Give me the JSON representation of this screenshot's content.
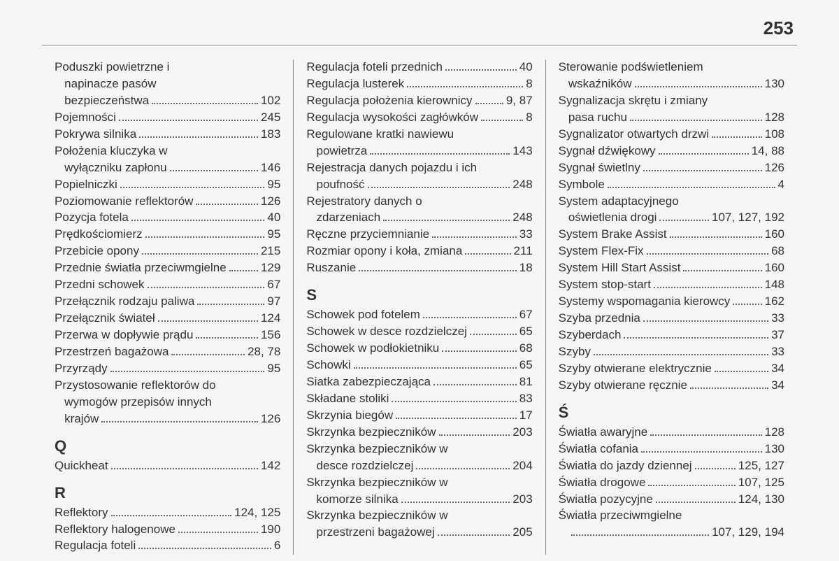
{
  "pageNumber": "253",
  "columns": [
    {
      "entries": [
        {
          "label": "Poduszki powietrzne i\n   napinacze pasów\n   bezpieczeństwa",
          "page": "102"
        },
        {
          "label": "Pojemności",
          "page": "245"
        },
        {
          "label": "Pokrywa silnika",
          "page": "183"
        },
        {
          "label": "Położenia kluczyka w\n   wyłączniku zapłonu",
          "page": "146"
        },
        {
          "label": "Popielniczki",
          "page": "95"
        },
        {
          "label": "Poziomowanie reflektorów",
          "page": "126"
        },
        {
          "label": "Pozycja fotela",
          "page": "40"
        },
        {
          "label": "Prędkościomierz",
          "page": "95"
        },
        {
          "label": "Przebicie opony",
          "page": "215"
        },
        {
          "label": "Przednie światła przeciwmgielne",
          "page": "129"
        },
        {
          "label": "Przedni schowek",
          "page": "67"
        },
        {
          "label": "Przełącznik rodzaju paliwa",
          "page": "97"
        },
        {
          "label": "Przełącznik świateł",
          "page": "124"
        },
        {
          "label": "Przerwa w dopływie prądu",
          "page": "156"
        },
        {
          "label": "Przestrzeń bagażowa",
          "page": "28, 78"
        },
        {
          "label": "Przyrządy",
          "page": "95"
        },
        {
          "label": "Przystosowanie reflektorów do\n   wymogów przepisów innych\n   krajów",
          "page": "126"
        },
        {
          "type": "header",
          "label": "Q"
        },
        {
          "label": "Quickheat",
          "page": "142"
        },
        {
          "type": "header",
          "label": "R"
        },
        {
          "label": "Reflektory",
          "page": "124, 125"
        },
        {
          "label": "Reflektory halogenowe",
          "page": "190"
        },
        {
          "label": "Regulacja foteli",
          "page": "6"
        }
      ]
    },
    {
      "entries": [
        {
          "label": "Regulacja foteli przednich",
          "page": "40"
        },
        {
          "label": "Regulacja lusterek",
          "page": "8"
        },
        {
          "label": "Regulacja położenia kierownicy",
          "page": "9, 87"
        },
        {
          "label": "Regulacja wysokości zagłówków",
          "page": "8"
        },
        {
          "label": "Regulowane kratki nawiewu\n   powietrza",
          "page": "143"
        },
        {
          "label": "Rejestracja danych pojazdu i ich\n   poufność",
          "page": "248"
        },
        {
          "label": "Rejestratory danych o\n   zdarzeniach",
          "page": "248"
        },
        {
          "label": "Ręczne przyciemnianie",
          "page": "33"
        },
        {
          "label": "Rozmiar opony i koła, zmiana",
          "page": "211"
        },
        {
          "label": "Ruszanie",
          "page": "18"
        },
        {
          "type": "header",
          "label": "S"
        },
        {
          "label": "Schowek pod fotelem",
          "page": "67"
        },
        {
          "label": "Schowek w desce rozdzielczej",
          "page": "65"
        },
        {
          "label": "Schowek w podłokietniku",
          "page": "68"
        },
        {
          "label": "Schowki",
          "page": "65"
        },
        {
          "label": "Siatka zabezpieczająca",
          "page": "81"
        },
        {
          "label": "Składane stoliki",
          "page": "83"
        },
        {
          "label": "Skrzynia biegów",
          "page": "17"
        },
        {
          "label": "Skrzynka bezpieczników",
          "page": "203"
        },
        {
          "label": "Skrzynka bezpieczników w\n   desce rozdzielczej",
          "page": "204"
        },
        {
          "label": "Skrzynka bezpieczników w\n   komorze silnika",
          "page": "203"
        },
        {
          "label": "Skrzynka bezpieczników w\n   przestrzeni bagażowej",
          "page": "205"
        }
      ]
    },
    {
      "entries": [
        {
          "label": "Sterowanie podświetleniem\n   wskaźników",
          "page": "130"
        },
        {
          "label": "Sygnalizacja skrętu i zmiany\n   pasa ruchu",
          "page": "128"
        },
        {
          "label": "Sygnalizator otwartych drzwi",
          "page": "108"
        },
        {
          "label": "Sygnał dźwiękowy",
          "page": "14, 88"
        },
        {
          "label": "Sygnał świetlny",
          "page": "126"
        },
        {
          "label": "Symbole",
          "page": "4"
        },
        {
          "label": "System adaptacyjnego\n   oświetlenia drogi",
          "page": "107, 127, 192"
        },
        {
          "label": "System Brake Assist",
          "page": "160"
        },
        {
          "label": "System Flex-Fix",
          "page": "68"
        },
        {
          "label": "System Hill Start Assist",
          "page": "160"
        },
        {
          "label": "System stop-start",
          "page": "148"
        },
        {
          "label": "Systemy wspomagania kierowcy",
          "page": "162"
        },
        {
          "label": "Szyba przednia",
          "page": "33"
        },
        {
          "label": "Szyberdach",
          "page": "37"
        },
        {
          "label": "Szyby",
          "page": "33"
        },
        {
          "label": "Szyby otwierane elektrycznie",
          "page": "34"
        },
        {
          "label": "Szyby otwierane ręcznie",
          "page": "34"
        },
        {
          "type": "header",
          "label": "Ś"
        },
        {
          "label": "Światła awaryjne",
          "page": "128"
        },
        {
          "label": "Światła cofania",
          "page": "130"
        },
        {
          "label": "Światła do jazdy dziennej",
          "page": "125, 127"
        },
        {
          "label": "Światła drogowe",
          "page": "107, 125"
        },
        {
          "label": "Światła pozycyjne",
          "page": "124, 130"
        },
        {
          "label": "Światła przeciwmgielne\n   ",
          "page": "107, 129, 194"
        }
      ]
    }
  ]
}
